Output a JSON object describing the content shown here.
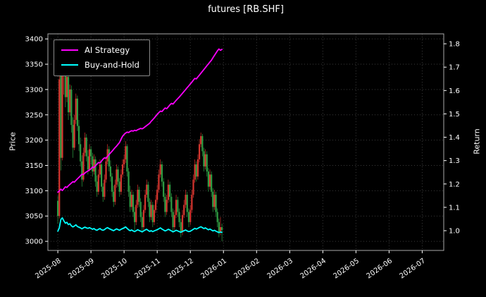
{
  "chart_data": {
    "type": "candlestick+line",
    "title": "futures [RB.SHF]",
    "xlabel": "",
    "ylabel_left": "Price",
    "ylabel_right": "Return",
    "legend_position": "upper left",
    "grid": true,
    "x_ticklabels": [
      "2025-08",
      "2025-09",
      "2025-10",
      "2025-11",
      "2025-12",
      "2026-01",
      "2026-02",
      "2026-03",
      "2026-04",
      "2026-05",
      "2026-06",
      "2026-07"
    ],
    "price_ticks": [
      "3000",
      "3050",
      "3100",
      "3150",
      "3200",
      "3250",
      "3300",
      "3350",
      "3400"
    ],
    "return_ticks": [
      "1.0",
      "1.1",
      "1.2",
      "1.3",
      "1.4",
      "1.5",
      "1.6",
      "1.7",
      "1.8"
    ],
    "price_lim": [
      2982,
      3410
    ],
    "return_lim": [
      0.9155,
      1.8425
    ],
    "x_lim_months": [
      -0.3,
      11.65
    ],
    "days_per_month": [
      22,
      22,
      22,
      21,
      22
    ],
    "colors": {
      "up": "#d6352e",
      "down": "#2f9e44",
      "background": "#000000",
      "text": "#ffffff",
      "grid": "#3a3a3a",
      "spine": "#aaaaaa",
      "legend_border": "#8a8a8a"
    },
    "candles_ohlc": [
      [
        3080,
        3090,
        3035,
        3050
      ],
      [
        3050,
        3330,
        3045,
        3320
      ],
      [
        3380,
        3400,
        3140,
        3165
      ],
      [
        3165,
        3350,
        3160,
        3340
      ],
      [
        3340,
        3395,
        3290,
        3360
      ],
      [
        3360,
        3370,
        3265,
        3285
      ],
      [
        3285,
        3340,
        3275,
        3325
      ],
      [
        3325,
        3335,
        3240,
        3255
      ],
      [
        3255,
        3310,
        3248,
        3300
      ],
      [
        3300,
        3308,
        3215,
        3230
      ],
      [
        3230,
        3245,
        3165,
        3185
      ],
      [
        3185,
        3250,
        3180,
        3240
      ],
      [
        3240,
        3292,
        3232,
        3282
      ],
      [
        3282,
        3288,
        3218,
        3228
      ],
      [
        3228,
        3240,
        3178,
        3192
      ],
      [
        3192,
        3205,
        3148,
        3158
      ],
      [
        3158,
        3170,
        3108,
        3122
      ],
      [
        3122,
        3185,
        3118,
        3175
      ],
      [
        3175,
        3215,
        3168,
        3205
      ],
      [
        3205,
        3212,
        3158,
        3168
      ],
      [
        3168,
        3180,
        3132,
        3142
      ],
      [
        3142,
        3192,
        3138,
        3182
      ],
      [
        3182,
        3188,
        3152,
        3168
      ],
      [
        3168,
        3175,
        3128,
        3138
      ],
      [
        3138,
        3172,
        3132,
        3162
      ],
      [
        3162,
        3168,
        3108,
        3118
      ],
      [
        3118,
        3130,
        3088,
        3098
      ],
      [
        3098,
        3142,
        3092,
        3132
      ],
      [
        3132,
        3162,
        3126,
        3152
      ],
      [
        3152,
        3158,
        3098,
        3108
      ],
      [
        3108,
        3115,
        3078,
        3088
      ],
      [
        3088,
        3132,
        3082,
        3122
      ],
      [
        3122,
        3168,
        3116,
        3158
      ],
      [
        3158,
        3192,
        3152,
        3182
      ],
      [
        3182,
        3188,
        3138,
        3148
      ],
      [
        3148,
        3160,
        3118,
        3128
      ],
      [
        3128,
        3135,
        3088,
        3098
      ],
      [
        3098,
        3110,
        3068,
        3078
      ],
      [
        3078,
        3122,
        3072,
        3112
      ],
      [
        3112,
        3152,
        3106,
        3142
      ],
      [
        3142,
        3148,
        3108,
        3118
      ],
      [
        3118,
        3125,
        3088,
        3098
      ],
      [
        3098,
        3142,
        3092,
        3132
      ],
      [
        3132,
        3162,
        3126,
        3152
      ],
      [
        3152,
        3172,
        3145,
        3162
      ],
      [
        3162,
        3198,
        3155,
        3188
      ],
      [
        3188,
        3192,
        3128,
        3138
      ],
      [
        3138,
        3145,
        3088,
        3098
      ],
      [
        3098,
        3110,
        3058,
        3068
      ],
      [
        3068,
        3102,
        3062,
        3092
      ],
      [
        3092,
        3098,
        3048,
        3058
      ],
      [
        3058,
        3068,
        3022,
        3038
      ],
      [
        3038,
        3082,
        3032,
        3072
      ],
      [
        3072,
        3112,
        3066,
        3102
      ],
      [
        3102,
        3108,
        3068,
        3078
      ],
      [
        3078,
        3085,
        3038,
        3048
      ],
      [
        3048,
        3058,
        3018,
        3028
      ],
      [
        3028,
        3072,
        3022,
        3062
      ],
      [
        3062,
        3102,
        3056,
        3092
      ],
      [
        3092,
        3122,
        3086,
        3112
      ],
      [
        3112,
        3118,
        3068,
        3078
      ],
      [
        3078,
        3085,
        3038,
        3048
      ],
      [
        3048,
        3082,
        3042,
        3072
      ],
      [
        3072,
        3078,
        3028,
        3038
      ],
      [
        3038,
        3072,
        3032,
        3062
      ],
      [
        3062,
        3092,
        3056,
        3082
      ],
      [
        3082,
        3112,
        3076,
        3102
      ],
      [
        3102,
        3142,
        3096,
        3132
      ],
      [
        3132,
        3162,
        3126,
        3152
      ],
      [
        3152,
        3158,
        3108,
        3118
      ],
      [
        3118,
        3125,
        3078,
        3088
      ],
      [
        3088,
        3095,
        3048,
        3058
      ],
      [
        3058,
        3092,
        3052,
        3082
      ],
      [
        3082,
        3122,
        3076,
        3112
      ],
      [
        3112,
        3118,
        3078,
        3088
      ],
      [
        3088,
        3095,
        3048,
        3058
      ],
      [
        3058,
        3065,
        3018,
        3028
      ],
      [
        3028,
        3062,
        3022,
        3052
      ],
      [
        3052,
        3092,
        3046,
        3082
      ],
      [
        3082,
        3088,
        3048,
        3058
      ],
      [
        3058,
        3065,
        3028,
        3038
      ],
      [
        3038,
        3045,
        3008,
        3018
      ],
      [
        3018,
        3062,
        3012,
        3052
      ],
      [
        3052,
        3082,
        3046,
        3072
      ],
      [
        3072,
        3102,
        3066,
        3092
      ],
      [
        3092,
        3098,
        3048,
        3058
      ],
      [
        3058,
        3065,
        3028,
        3038
      ],
      [
        3038,
        3072,
        3032,
        3062
      ],
      [
        3062,
        3102,
        3056,
        3092
      ],
      [
        3092,
        3132,
        3086,
        3122
      ],
      [
        3122,
        3162,
        3116,
        3152
      ],
      [
        3152,
        3158,
        3118,
        3128
      ],
      [
        3128,
        3172,
        3122,
        3162
      ],
      [
        3162,
        3202,
        3156,
        3192
      ],
      [
        3192,
        3215,
        3186,
        3208
      ],
      [
        3208,
        3212,
        3168,
        3178
      ],
      [
        3178,
        3185,
        3138,
        3148
      ],
      [
        3148,
        3182,
        3142,
        3172
      ],
      [
        3172,
        3178,
        3128,
        3138
      ],
      [
        3138,
        3145,
        3098,
        3108
      ],
      [
        3108,
        3142,
        3102,
        3132
      ],
      [
        3132,
        3138,
        3088,
        3098
      ],
      [
        3098,
        3105,
        3058,
        3068
      ],
      [
        3068,
        3102,
        3062,
        3092
      ],
      [
        3092,
        3098,
        3048,
        3058
      ],
      [
        3058,
        3065,
        3028,
        3038
      ],
      [
        3038,
        3045,
        3008,
        3018
      ],
      [
        3018,
        3048,
        3012,
        3028
      ],
      [
        3028,
        3035,
        3000,
        3022
      ]
    ],
    "series": [
      {
        "name": "AI Strategy",
        "color": "#ff00ff",
        "axis": "return",
        "values": [
          1.165,
          1.17,
          1.178,
          1.172,
          1.18,
          1.188,
          1.185,
          1.192,
          1.198,
          1.204,
          1.21,
          1.208,
          1.215,
          1.222,
          1.228,
          1.235,
          1.242,
          1.24,
          1.247,
          1.252,
          1.256,
          1.26,
          1.265,
          1.272,
          1.27,
          1.278,
          1.285,
          1.292,
          1.29,
          1.298,
          1.306,
          1.312,
          1.31,
          1.318,
          1.326,
          1.333,
          1.34,
          1.348,
          1.355,
          1.362,
          1.37,
          1.378,
          1.392,
          1.404,
          1.412,
          1.418,
          1.422,
          1.42,
          1.425,
          1.428,
          1.426,
          1.43,
          1.428,
          1.432,
          1.435,
          1.438,
          1.436,
          1.44,
          1.445,
          1.45,
          1.455,
          1.46,
          1.468,
          1.475,
          1.482,
          1.49,
          1.498,
          1.505,
          1.512,
          1.51,
          1.518,
          1.525,
          1.522,
          1.53,
          1.538,
          1.545,
          1.542,
          1.55,
          1.558,
          1.565,
          1.572,
          1.58,
          1.588,
          1.596,
          1.604,
          1.612,
          1.62,
          1.628,
          1.636,
          1.644,
          1.652,
          1.65,
          1.658,
          1.666,
          1.674,
          1.682,
          1.69,
          1.698,
          1.706,
          1.714,
          1.722,
          1.73,
          1.74,
          1.75,
          1.76,
          1.77,
          1.778,
          1.772,
          1.776
        ]
      },
      {
        "name": "Buy-and-Hold",
        "color": "#00ffff",
        "axis": "return",
        "values": [
          0.998,
          1.012,
          1.048,
          1.055,
          1.042,
          1.032,
          1.036,
          1.026,
          1.03,
          1.021,
          1.016,
          1.02,
          1.025,
          1.018,
          1.015,
          1.012,
          1.008,
          1.012,
          1.015,
          1.012,
          1.01,
          1.013,
          1.01,
          1.006,
          1.009,
          1.004,
          1.002,
          1.006,
          1.009,
          1.004,
          1.002,
          1.005,
          1.01,
          1.013,
          1.009,
          1.006,
          1.003,
          1.0,
          1.004,
          1.008,
          1.005,
          1.002,
          1.006,
          1.009,
          1.012,
          1.016,
          1.01,
          1.004,
          1.0,
          1.003,
          0.999,
          0.996,
          1.0,
          1.004,
          1.001,
          0.998,
          0.995,
          0.999,
          1.003,
          1.006,
          1.001,
          0.997,
          1.0,
          0.996,
          0.999,
          1.002,
          1.004,
          1.008,
          1.012,
          1.007,
          1.003,
          0.999,
          1.002,
          1.006,
          1.003,
          0.999,
          0.995,
          0.998,
          1.002,
          0.999,
          0.996,
          0.993,
          0.997,
          1.0,
          1.003,
          0.999,
          0.996,
          0.998,
          1.002,
          1.006,
          1.01,
          1.007,
          1.01,
          1.014,
          1.017,
          1.013,
          1.009,
          1.012,
          1.008,
          1.004,
          1.007,
          1.003,
          0.999,
          1.002,
          0.998,
          0.995,
          0.992,
          0.994,
          0.993
        ]
      }
    ]
  }
}
